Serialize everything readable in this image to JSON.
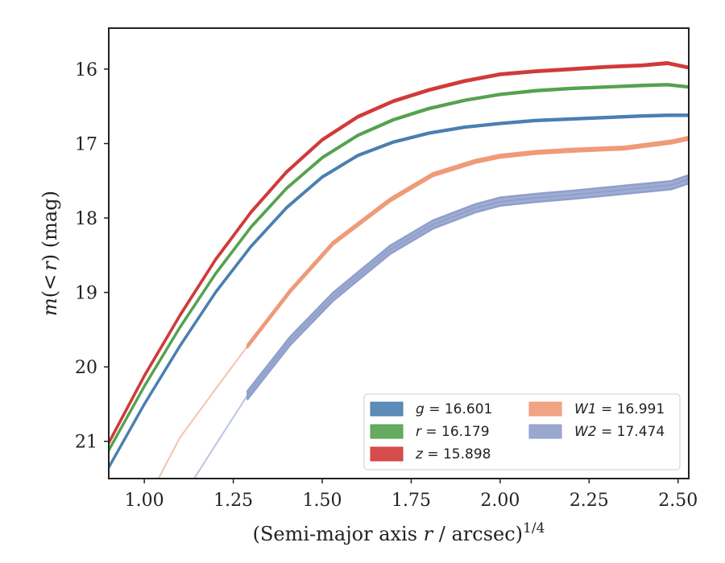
{
  "chart_data": {
    "type": "line",
    "title": "",
    "xlabel": "(Semi-major axis r / arcsec)",
    "xlabel_parts": {
      "prefix": "(Semi-major axis ",
      "var": "r",
      "suffix": " / arcsec)",
      "sup": "1/4"
    },
    "ylabel": "m(< r) (mag)",
    "ylabel_parts": {
      "m": "m",
      "open": "(",
      "lt": "<",
      "r": "r",
      "close": ")",
      "unit": " (mag)"
    },
    "xlim": [
      0.9,
      2.53
    ],
    "ylim": [
      21.5,
      15.45
    ],
    "y_inverted": true,
    "xticks": [
      1.0,
      1.25,
      1.5,
      1.75,
      2.0,
      2.25,
      2.5
    ],
    "xtick_labels": [
      "1.00",
      "1.25",
      "1.50",
      "1.75",
      "2.00",
      "2.25",
      "2.50"
    ],
    "yticks": [
      16,
      17,
      18,
      19,
      20,
      21
    ],
    "ytick_labels": [
      "16",
      "17",
      "18",
      "19",
      "20",
      "21"
    ],
    "grid": false,
    "legend_position": "lower-right",
    "series": [
      {
        "name": "g = 16.601",
        "band": "g",
        "value": "16.601",
        "color": "#4a7fb0",
        "x": [
          0.9,
          1.0,
          1.1,
          1.2,
          1.3,
          1.4,
          1.5,
          1.6,
          1.7,
          1.8,
          1.9,
          2.0,
          2.1,
          2.2,
          2.3,
          2.4,
          2.47,
          2.53
        ],
        "y": [
          21.35,
          20.5,
          19.72,
          19.0,
          18.38,
          17.86,
          17.45,
          17.16,
          16.98,
          16.86,
          16.78,
          16.73,
          16.69,
          16.67,
          16.65,
          16.63,
          16.62,
          16.62
        ],
        "band_width": 0.02
      },
      {
        "name": "r = 16.179",
        "band": "r",
        "value": "16.179",
        "color": "#55a24f",
        "x": [
          0.9,
          1.0,
          1.1,
          1.2,
          1.3,
          1.4,
          1.5,
          1.6,
          1.7,
          1.8,
          1.9,
          2.0,
          2.1,
          2.2,
          2.3,
          2.4,
          2.47,
          2.53
        ],
        "y": [
          21.12,
          20.26,
          19.47,
          18.75,
          18.12,
          17.6,
          17.19,
          16.89,
          16.68,
          16.53,
          16.42,
          16.34,
          16.29,
          16.26,
          16.24,
          16.22,
          16.21,
          16.24
        ],
        "band_width": 0.02
      },
      {
        "name": "z = 15.898",
        "band": "z",
        "value": "15.898",
        "color": "#d13a3a",
        "x": [
          0.9,
          1.0,
          1.1,
          1.2,
          1.3,
          1.4,
          1.5,
          1.6,
          1.7,
          1.8,
          1.9,
          2.0,
          2.1,
          2.2,
          2.3,
          2.4,
          2.47,
          2.53
        ],
        "y": [
          21.02,
          20.12,
          19.31,
          18.56,
          17.92,
          17.38,
          16.95,
          16.64,
          16.43,
          16.28,
          16.16,
          16.07,
          16.03,
          16.0,
          15.97,
          15.95,
          15.92,
          15.98
        ],
        "band_width": 0.025
      },
      {
        "name": "W1 = 16.991",
        "band": "W1",
        "value": "16.991",
        "color": "#ef9a78",
        "faint_x": [
          1.04,
          1.1,
          1.2,
          1.29
        ],
        "faint_y": [
          21.5,
          20.95,
          20.3,
          19.72
        ],
        "x": [
          1.29,
          1.41,
          1.53,
          1.69,
          1.81,
          1.93,
          2.0,
          2.1,
          2.2,
          2.35,
          2.48,
          2.53
        ],
        "y": [
          19.72,
          18.98,
          18.34,
          17.76,
          17.42,
          17.24,
          17.17,
          17.12,
          17.09,
          17.06,
          16.98,
          16.93
        ],
        "band_width": 0.04
      },
      {
        "name": "W2 = 17.474",
        "band": "W2",
        "value": "17.474",
        "color": "#8f9fcb",
        "faint_x": [
          1.14,
          1.2,
          1.29
        ],
        "faint_y": [
          21.5,
          21.05,
          20.38
        ],
        "x": [
          1.29,
          1.41,
          1.53,
          1.69,
          1.81,
          1.93,
          2.0,
          2.1,
          2.2,
          2.35,
          2.48,
          2.53
        ],
        "y": [
          20.38,
          19.65,
          19.06,
          18.43,
          18.09,
          17.87,
          17.78,
          17.73,
          17.69,
          17.62,
          17.56,
          17.48
        ],
        "band_width": 0.11
      }
    ]
  }
}
